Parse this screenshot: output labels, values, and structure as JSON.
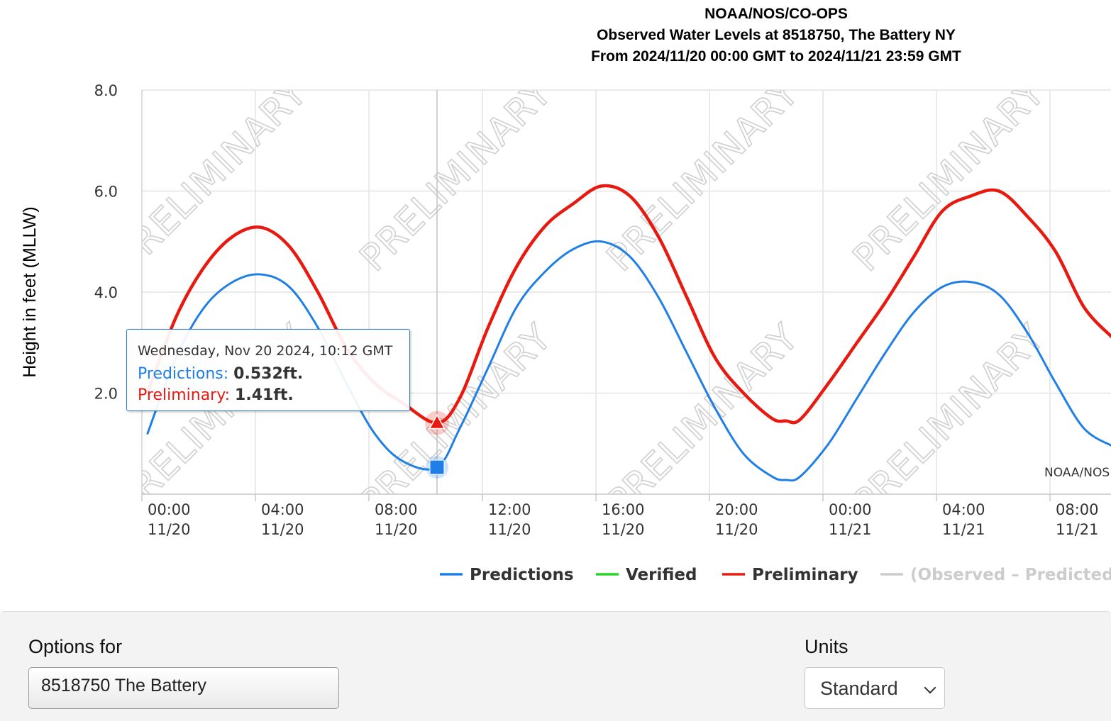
{
  "chart_data": {
    "type": "line",
    "title": [
      "NOAA/NOS/CO-OPS",
      "Observed Water Levels at 8518750, The Battery NY",
      "From 2024/11/20 00:00 GMT to 2024/11/21 23:59 GMT"
    ],
    "ylabel": "Height in feet (MLLW)",
    "ylim": [
      0,
      8
    ],
    "yticks": [
      "2.0",
      "4.0",
      "6.0",
      "8.0"
    ],
    "xlim_hours": [
      -0.2,
      34.2
    ],
    "xticks": [
      {
        "time": "00:00",
        "date": "11/20"
      },
      {
        "time": "04:00",
        "date": "11/20"
      },
      {
        "time": "08:00",
        "date": "11/20"
      },
      {
        "time": "12:00",
        "date": "11/20"
      },
      {
        "time": "16:00",
        "date": "11/20"
      },
      {
        "time": "20:00",
        "date": "11/20"
      },
      {
        "time": "00:00",
        "date": "11/21"
      },
      {
        "time": "04:00",
        "date": "11/21"
      },
      {
        "time": "08:00",
        "date": "11/21"
      }
    ],
    "grid": true,
    "watermark": "PRELIMINARY",
    "credit": "NOAA/NOS",
    "legend_position": "bottom",
    "legend": [
      {
        "name": "Predictions",
        "color": "#1f7fe6",
        "active": true
      },
      {
        "name": "Verified",
        "color": "#2ad42a",
        "active": true
      },
      {
        "name": "Preliminary",
        "color": "#e8190f",
        "active": true
      },
      {
        "name": "(Observed – Predicted)",
        "color": "#cccccc",
        "active": false
      }
    ],
    "series": [
      {
        "name": "Predictions",
        "color": "#1f7fe6",
        "x_hours": [
          0,
          1,
          2,
          3,
          4,
          5,
          6,
          7,
          8,
          9,
          10.2,
          11,
          12,
          13,
          14,
          15,
          16,
          17,
          18,
          19,
          20,
          21,
          22,
          22.5,
          23,
          24,
          25,
          26,
          27,
          28,
          29,
          30,
          31,
          32,
          33,
          34
        ],
        "y_ft": [
          1.2,
          2.7,
          3.7,
          4.2,
          4.35,
          4.1,
          3.3,
          2.2,
          1.2,
          0.65,
          0.532,
          1.3,
          2.5,
          3.7,
          4.4,
          4.85,
          5.0,
          4.7,
          3.9,
          2.8,
          1.7,
          0.8,
          0.35,
          0.28,
          0.35,
          1.0,
          1.9,
          2.8,
          3.6,
          4.1,
          4.2,
          3.95,
          3.2,
          2.2,
          1.3,
          0.95
        ]
      },
      {
        "name": "Preliminary",
        "color": "#e8190f",
        "x_hours": [
          0,
          1,
          2,
          3,
          4,
          5,
          6,
          7,
          8,
          9,
          10.2,
          11,
          12,
          13,
          14,
          15,
          16,
          17,
          18,
          19,
          20,
          21,
          22,
          22.5,
          23,
          24,
          25,
          26,
          27,
          28,
          29,
          30,
          31,
          32,
          33,
          34
        ],
        "y_ft": [
          2.0,
          3.5,
          4.5,
          5.1,
          5.28,
          4.9,
          4.0,
          2.9,
          2.2,
          1.8,
          1.41,
          1.9,
          3.3,
          4.5,
          5.3,
          5.75,
          6.1,
          5.9,
          5.1,
          3.9,
          2.7,
          2.0,
          1.5,
          1.45,
          1.48,
          2.2,
          3.0,
          3.8,
          4.7,
          5.6,
          5.9,
          6.0,
          5.5,
          4.8,
          3.7,
          3.1
        ]
      }
    ]
  },
  "tooltip": {
    "date": "Wednesday, Nov 20 2024, 10:12 GMT",
    "predictions_label": "Predictions:",
    "predictions_value": "0.532ft.",
    "preliminary_label": "Preliminary:",
    "preliminary_value": "1.41ft.",
    "hover_hour": 10.2,
    "hover_predictions_ft": 0.532,
    "hover_preliminary_ft": 1.41
  },
  "options": {
    "options_for_label": "Options for",
    "station_value": "8518750 The Battery",
    "units_label": "Units",
    "units_value": "Standard"
  }
}
